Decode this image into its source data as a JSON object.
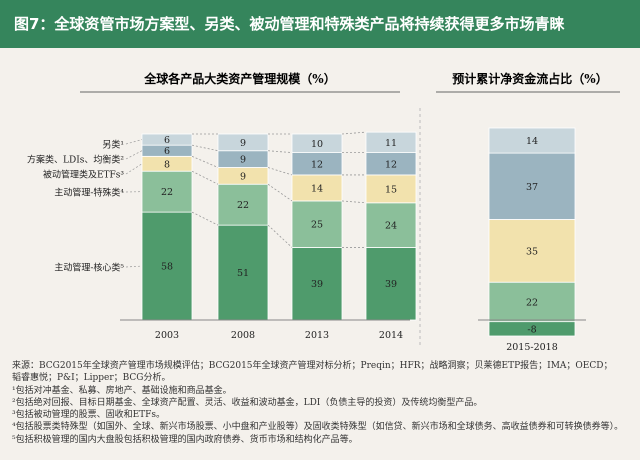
{
  "header": {
    "title": "图7：全球资管市场方案型、另类、被动管理和特殊类产品将持续获得更多市场青睐"
  },
  "colors": {
    "header_bg": "#35855c",
    "segment_fills": [
      "#c8d6dc",
      "#9bb4c0",
      "#f2e2ad",
      "#8bbf9a",
      "#4f9b6c"
    ],
    "net_flow_fills": [
      "#c8d6dc",
      "#9bb4c0",
      "#f2e2ad",
      "#8bbf9a",
      "#4f9b6c"
    ]
  },
  "chart_data": [
    {
      "type": "bar",
      "stacked": true,
      "title": "全球各产品大类资产管理规模（%）",
      "categories": [
        "2003",
        "2008",
        "2013",
        "2014"
      ],
      "series": [
        {
          "name": "主动管理-核心类⁵",
          "values": [
            58,
            51,
            39,
            39
          ]
        },
        {
          "name": "主动管理-特殊类⁴",
          "values": [
            22,
            22,
            25,
            24
          ]
        },
        {
          "name": "被动管理类及ETFs³",
          "values": [
            8,
            9,
            14,
            15
          ]
        },
        {
          "name": "方案类、LDIs、均衡类²",
          "values": [
            6,
            9,
            12,
            12
          ]
        },
        {
          "name": "另类¹",
          "values": [
            6,
            9,
            10,
            11
          ]
        }
      ],
      "ylim": [
        0,
        100
      ],
      "grid": false,
      "legend": "left, labels aligned with segments"
    },
    {
      "type": "bar",
      "stacked": true,
      "title": "预计累计净资金流占比（%）",
      "categories": [
        "2015-2018"
      ],
      "series": [
        {
          "name": "主动管理-核心类⁵",
          "values": [
            -8
          ]
        },
        {
          "name": "主动管理-特殊类⁴",
          "values": [
            22
          ]
        },
        {
          "name": "被动管理类及ETFs³",
          "values": [
            35
          ]
        },
        {
          "name": "方案类、LDIs、均衡类²",
          "values": [
            37
          ]
        },
        {
          "name": "另类¹",
          "values": [
            14
          ]
        }
      ],
      "ylim": [
        -8,
        108
      ],
      "grid": false
    }
  ],
  "footnotes": [
    "来源：BCG2015年全球资产管理市场规模评估；BCG2015年全球资产管理对标分析；Preqin；HFR；战略洞察；贝莱德ETP报告；IMA；OECD；",
    "韬睿惠悦；P&I；Lipper；BCG分析。",
    "¹包括对冲基金、私募、房地产、基础设施和商品基金。",
    "²包括绝对回报、目标日期基金、全球资产配置、灵活、收益和波动基金，LDI（负债主导的投资）及传统均衡型产品。",
    "³包括被动管理的股票、固收和ETFs。",
    "⁴包括股票类特殊型（如国外、全球、新兴市场股票、小中盘和产业股等）及固收类特殊型（如信贷、新兴市场和全球债务、高收益债券和可转换债券等）。",
    "⁵包括积极管理的国内大盘股包括积极管理的国内政府债券、货币市场和结构化产品等。"
  ]
}
